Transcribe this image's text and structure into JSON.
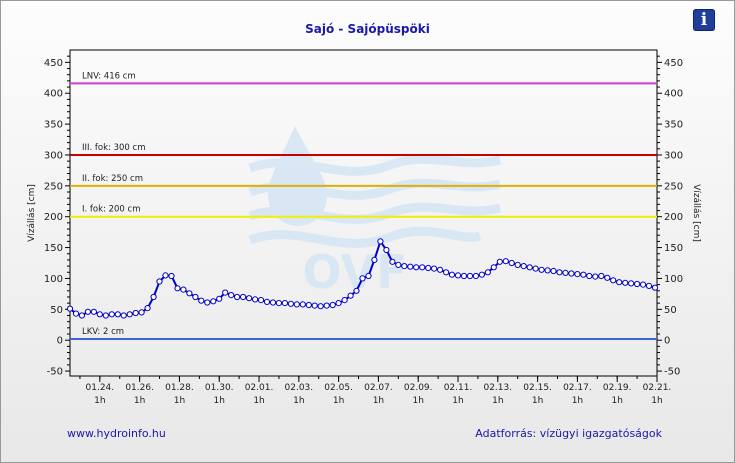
{
  "header": {
    "title": "Sajó - Sajópüspöki",
    "info_icon": "info-icon",
    "info_glyph": "i"
  },
  "footer": {
    "left": "www.hydroinfo.hu",
    "right": "Adatforrás: vízügyi igazgatóságok"
  },
  "watermark": {
    "text": "OVF",
    "icon": "water-drop-wave-logo",
    "color": "#cfe0f2"
  },
  "chart_data": {
    "type": "line",
    "title": "Sajó - Sajópüspöki",
    "ylabel": "Vízállás [cm]",
    "ylabel_right": "Vízállás [cm]",
    "ylim": [
      -58,
      470
    ],
    "yticks": [
      -50,
      0,
      50,
      100,
      150,
      200,
      250,
      300,
      350,
      400,
      450
    ],
    "xlim": [
      0,
      29.5
    ],
    "xticks": [
      {
        "day": 1.5,
        "label": "01.24.",
        "sub": "1h"
      },
      {
        "day": 3.5,
        "label": "01.26.",
        "sub": "1h"
      },
      {
        "day": 5.5,
        "label": "01.28.",
        "sub": "1h"
      },
      {
        "day": 7.5,
        "label": "01.30.",
        "sub": "1h"
      },
      {
        "day": 9.5,
        "label": "02.01.",
        "sub": "1h"
      },
      {
        "day": 11.5,
        "label": "02.03.",
        "sub": "1h"
      },
      {
        "day": 13.5,
        "label": "02.05.",
        "sub": "1h"
      },
      {
        "day": 15.5,
        "label": "02.07.",
        "sub": "1h"
      },
      {
        "day": 17.5,
        "label": "02.09.",
        "sub": "1h"
      },
      {
        "day": 19.5,
        "label": "02.11.",
        "sub": "1h"
      },
      {
        "day": 21.5,
        "label": "02.13.",
        "sub": "1h"
      },
      {
        "day": 23.5,
        "label": "02.15.",
        "sub": "1h"
      },
      {
        "day": 25.5,
        "label": "02.17.",
        "sub": "1h"
      },
      {
        "day": 27.5,
        "label": "02.19.",
        "sub": "1h"
      },
      {
        "day": 29.5,
        "label": "02.21.",
        "sub": "1h"
      }
    ],
    "thresholds": [
      {
        "label": "LNV: 416 cm",
        "value": 416,
        "color": "#d23cd2"
      },
      {
        "label": "III. fok: 300 cm",
        "value": 300,
        "color": "#c80000"
      },
      {
        "label": "II. fok: 250 cm",
        "value": 250,
        "color": "#e0b000"
      },
      {
        "label": "I. fok: 200 cm",
        "value": 200,
        "color": "#f0f000"
      },
      {
        "label": "LKV: 2 cm",
        "value": 2,
        "color": "#3c64d2"
      }
    ],
    "series": [
      {
        "color": "#0000cc",
        "x": [
          0,
          0.3,
          0.6,
          0.9,
          1.2,
          1.5,
          1.8,
          2.1,
          2.4,
          2.7,
          3,
          3.3,
          3.6,
          3.9,
          4.2,
          4.5,
          4.8,
          5.1,
          5.4,
          5.7,
          6,
          6.3,
          6.6,
          6.9,
          7.2,
          7.5,
          7.8,
          8.1,
          8.4,
          8.7,
          9,
          9.3,
          9.6,
          9.9,
          10.2,
          10.5,
          10.8,
          11.1,
          11.4,
          11.7,
          12,
          12.3,
          12.6,
          12.9,
          13.2,
          13.5,
          13.8,
          14.1,
          14.4,
          14.7,
          15,
          15.3,
          15.6,
          15.9,
          16.2,
          16.5,
          16.8,
          17.1,
          17.4,
          17.7,
          18,
          18.3,
          18.6,
          18.9,
          19.2,
          19.5,
          19.8,
          20.1,
          20.4,
          20.7,
          21,
          21.3,
          21.6,
          21.9,
          22.2,
          22.5,
          22.8,
          23.1,
          23.4,
          23.7,
          24,
          24.3,
          24.6,
          24.9,
          25.2,
          25.5,
          25.8,
          26.1,
          26.4,
          26.7,
          27,
          27.3,
          27.6,
          27.9,
          28.2,
          28.5,
          28.8,
          29.1,
          29.4
        ],
        "values": [
          51,
          43,
          40,
          46,
          46,
          42,
          40,
          42,
          42,
          40,
          42,
          44,
          45,
          52,
          70,
          95,
          105,
          104,
          84,
          82,
          76,
          70,
          64,
          61,
          63,
          67,
          77,
          73,
          70,
          70,
          68,
          66,
          65,
          62,
          61,
          60,
          60,
          59,
          58,
          58,
          57,
          56,
          55,
          56,
          57,
          60,
          65,
          72,
          80,
          100,
          104,
          130,
          160,
          146,
          127,
          122,
          120,
          119,
          118,
          118,
          117,
          116,
          114,
          110,
          106,
          105,
          104,
          104,
          104,
          106,
          110,
          118,
          127,
          128,
          125,
          122,
          120,
          118,
          116,
          114,
          113,
          112,
          110,
          109,
          108,
          107,
          106,
          104,
          103,
          104,
          101,
          97,
          94,
          93,
          92,
          91,
          90,
          88,
          85
        ]
      }
    ],
    "grid": false,
    "legend": "none"
  }
}
